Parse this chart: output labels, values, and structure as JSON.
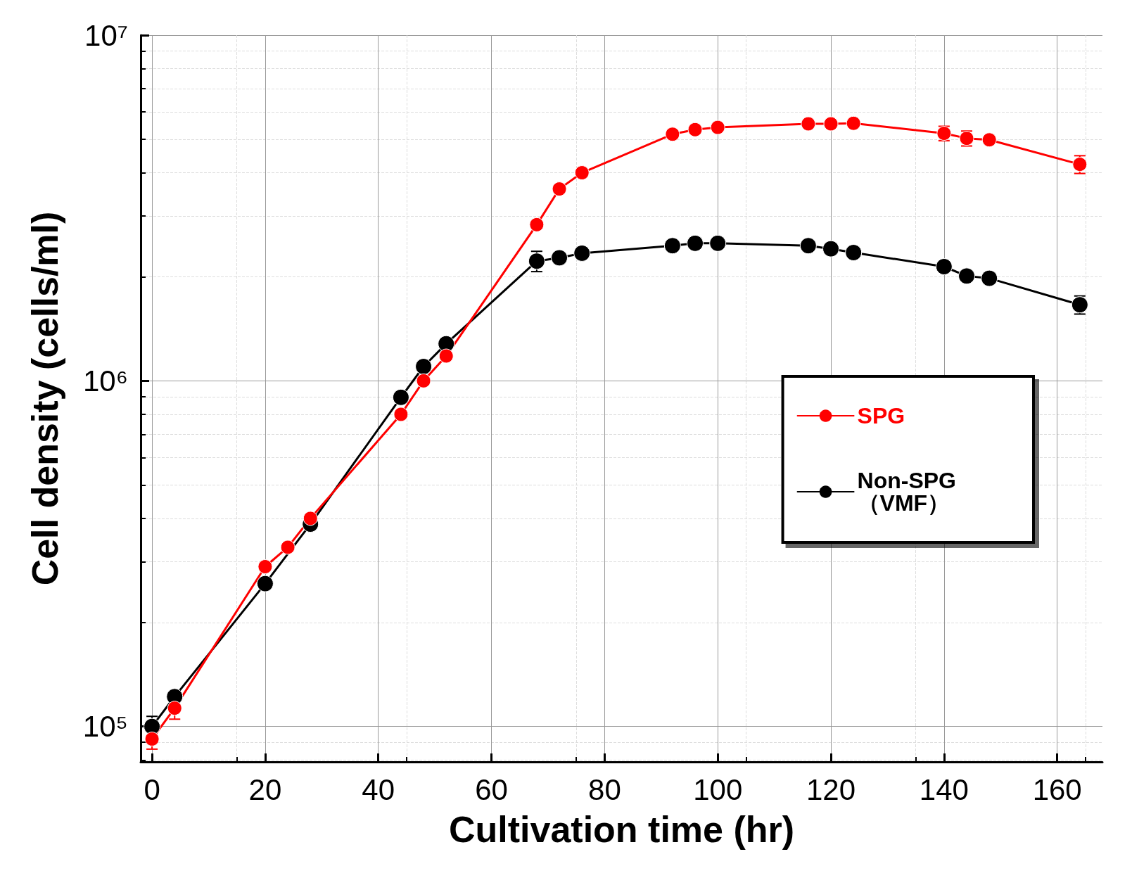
{
  "chart_data": {
    "type": "line",
    "xlabel": "Cultivation time (hr)",
    "ylabel": "Cell density (cells/ml)",
    "log": "y",
    "grid": true,
    "legend": "right",
    "marker": "circle",
    "line_style": "solid",
    "xlim": [
      -2,
      168
    ],
    "xticks": [
      0,
      20,
      40,
      60,
      80,
      100,
      120,
      140,
      160
    ],
    "ylim": [
      79000,
      10000000
    ],
    "yticks": [
      {
        "value": 100000,
        "label": "10⁵"
      },
      {
        "value": 1000000,
        "label": "10⁶"
      },
      {
        "value": 10000000,
        "label": "10⁷"
      }
    ],
    "series": [
      {
        "name": "Non-SPG\n（VMF）",
        "color": "#000000",
        "x": [
          0,
          4,
          20,
          28,
          44,
          48,
          52,
          68,
          72,
          76,
          92,
          96,
          100,
          116,
          120,
          124,
          140,
          144,
          148,
          164
        ],
        "values": [
          100000,
          122000,
          259000,
          385000,
          896000,
          1100000,
          1280000,
          2220000,
          2270000,
          2340000,
          2460000,
          2500000,
          2500000,
          2460000,
          2410000,
          2350000,
          2140000,
          2010000,
          1980000,
          1660000
        ],
        "errors": [
          7000,
          null,
          null,
          null,
          null,
          null,
          null,
          150000,
          null,
          null,
          null,
          null,
          null,
          null,
          null,
          null,
          null,
          null,
          null,
          100000
        ]
      },
      {
        "name": "SPG",
        "color": "#ff0000",
        "x": [
          0,
          4,
          20,
          24,
          28,
          44,
          48,
          52,
          68,
          72,
          76,
          92,
          96,
          100,
          116,
          120,
          124,
          140,
          144,
          148,
          164
        ],
        "values": [
          92000,
          113000,
          290000,
          330000,
          400000,
          800000,
          1000000,
          1180000,
          2830000,
          3590000,
          4000000,
          5170000,
          5330000,
          5410000,
          5540000,
          5540000,
          5560000,
          5200000,
          5030000,
          4980000,
          4230000
        ],
        "errors": [
          6000,
          8000,
          null,
          null,
          null,
          null,
          null,
          null,
          null,
          null,
          null,
          null,
          null,
          null,
          null,
          null,
          null,
          250000,
          250000,
          null,
          250000
        ]
      }
    ]
  }
}
